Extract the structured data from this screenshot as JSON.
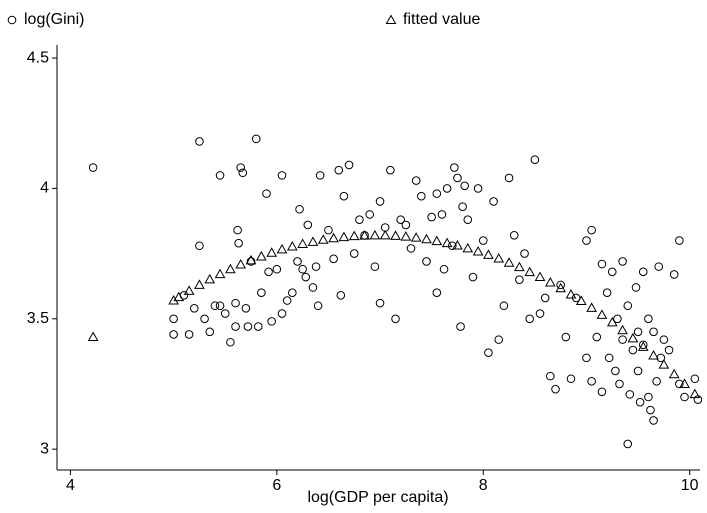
{
  "chart_data": {
    "type": "scatter",
    "xlabel": "log(GDP per capita)",
    "xlim": [
      3.87,
      10.1
    ],
    "ylim": [
      2.92,
      4.55
    ],
    "xticks": [
      4,
      6,
      8,
      10
    ],
    "yticks": [
      3,
      3.5,
      4,
      4.5
    ],
    "series": [
      {
        "name": "log(Gini)",
        "marker": "circle",
        "color": "#000000",
        "x": [
          4.22,
          5.0,
          5.0,
          5.1,
          5.15,
          5.2,
          5.25,
          5.25,
          5.3,
          5.35,
          5.4,
          5.45,
          5.45,
          5.5,
          5.55,
          5.6,
          5.6,
          5.62,
          5.63,
          5.65,
          5.67,
          5.7,
          5.72,
          5.75,
          5.8,
          5.82,
          5.85,
          5.9,
          5.92,
          5.95,
          6.0,
          6.05,
          6.05,
          6.1,
          6.15,
          6.2,
          6.22,
          6.25,
          6.28,
          6.3,
          6.35,
          6.38,
          6.4,
          6.42,
          6.5,
          6.55,
          6.6,
          6.62,
          6.65,
          6.7,
          6.75,
          6.8,
          6.85,
          6.9,
          6.95,
          7.0,
          7.0,
          7.05,
          7.1,
          7.15,
          7.2,
          7.25,
          7.3,
          7.35,
          7.4,
          7.45,
          7.5,
          7.55,
          7.55,
          7.6,
          7.62,
          7.65,
          7.7,
          7.72,
          7.75,
          7.78,
          7.8,
          7.82,
          7.85,
          7.9,
          7.95,
          8.0,
          8.05,
          8.1,
          8.15,
          8.2,
          8.25,
          8.3,
          8.35,
          8.4,
          8.45,
          8.5,
          8.55,
          8.6,
          8.65,
          8.7,
          8.75,
          8.8,
          8.85,
          8.9,
          9.0,
          9.0,
          9.05,
          9.05,
          9.1,
          9.15,
          9.15,
          9.2,
          9.22,
          9.25,
          9.28,
          9.3,
          9.32,
          9.35,
          9.35,
          9.4,
          9.4,
          9.42,
          9.45,
          9.48,
          9.5,
          9.5,
          9.52,
          9.55,
          9.55,
          9.6,
          9.6,
          9.62,
          9.65,
          9.65,
          9.68,
          9.7,
          9.72,
          9.75,
          9.8,
          9.85,
          9.9,
          9.9,
          9.95,
          10.05,
          10.08
        ],
        "values": [
          4.08,
          3.5,
          3.44,
          3.59,
          3.44,
          3.54,
          4.18,
          3.78,
          3.5,
          3.45,
          3.55,
          4.05,
          3.55,
          3.52,
          3.41,
          3.47,
          3.56,
          3.84,
          3.79,
          4.08,
          4.06,
          3.54,
          3.47,
          3.72,
          4.19,
          3.47,
          3.6,
          3.98,
          3.68,
          3.49,
          3.69,
          4.05,
          3.52,
          3.57,
          3.6,
          3.72,
          3.92,
          3.69,
          3.66,
          3.86,
          3.62,
          3.7,
          3.55,
          4.05,
          3.84,
          3.73,
          4.07,
          3.59,
          3.97,
          4.09,
          3.75,
          3.88,
          3.82,
          3.9,
          3.7,
          3.95,
          3.56,
          3.85,
          4.07,
          3.5,
          3.88,
          3.86,
          3.77,
          4.03,
          3.97,
          3.72,
          3.89,
          3.6,
          3.98,
          3.9,
          3.69,
          4.0,
          3.78,
          4.08,
          4.04,
          3.47,
          3.93,
          4.01,
          3.88,
          3.66,
          4.0,
          3.8,
          3.37,
          3.95,
          3.42,
          3.55,
          4.04,
          3.82,
          3.65,
          3.75,
          3.5,
          4.11,
          3.52,
          3.58,
          3.28,
          3.23,
          3.63,
          3.43,
          3.27,
          3.58,
          3.8,
          3.35,
          3.84,
          3.26,
          3.43,
          3.71,
          3.22,
          3.6,
          3.35,
          3.68,
          3.3,
          3.5,
          3.25,
          3.72,
          3.42,
          3.55,
          3.02,
          3.21,
          3.38,
          3.62,
          3.3,
          3.45,
          3.18,
          3.68,
          3.4,
          3.2,
          3.5,
          3.15,
          3.11,
          3.45,
          3.26,
          3.7,
          3.35,
          3.42,
          3.38,
          3.67,
          3.8,
          3.25,
          3.2,
          3.27,
          3.19
        ]
      },
      {
        "name": "fitted value",
        "marker": "triangle",
        "color": "#000000",
        "x": [
          4.22,
          5.0,
          5.05,
          5.15,
          5.25,
          5.35,
          5.45,
          5.55,
          5.65,
          5.75,
          5.85,
          5.95,
          6.05,
          6.15,
          6.25,
          6.35,
          6.45,
          6.55,
          6.65,
          6.75,
          6.85,
          6.95,
          7.05,
          7.15,
          7.25,
          7.35,
          7.45,
          7.55,
          7.65,
          7.75,
          7.85,
          7.95,
          8.05,
          8.15,
          8.25,
          8.35,
          8.45,
          8.55,
          8.65,
          8.75,
          8.85,
          8.95,
          9.05,
          9.15,
          9.25,
          9.35,
          9.45,
          9.55,
          9.65,
          9.75,
          9.85,
          9.95,
          10.05
        ],
        "values": [
          3.43,
          3.57,
          3.583,
          3.607,
          3.63,
          3.651,
          3.671,
          3.69,
          3.708,
          3.724,
          3.739,
          3.753,
          3.766,
          3.777,
          3.787,
          3.795,
          3.803,
          3.809,
          3.813,
          3.817,
          3.819,
          3.82,
          3.82,
          3.818,
          3.815,
          3.811,
          3.805,
          3.798,
          3.79,
          3.781,
          3.77,
          3.758,
          3.745,
          3.731,
          3.715,
          3.698,
          3.679,
          3.66,
          3.639,
          3.617,
          3.593,
          3.568,
          3.542,
          3.515,
          3.486,
          3.456,
          3.425,
          3.392,
          3.359,
          3.324,
          3.287,
          3.25,
          3.211
        ]
      }
    ]
  }
}
